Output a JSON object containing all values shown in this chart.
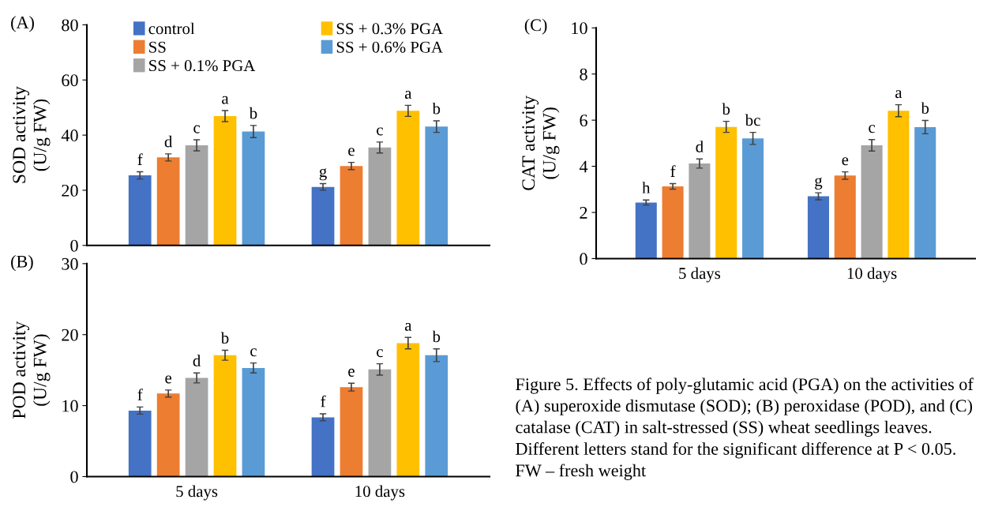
{
  "chart_data": [
    {
      "type": "bar",
      "title": "(A)",
      "ylabel": "SOD activity\n(U/g FW)",
      "categories": [
        null,
        null
      ],
      "ylim": [
        0,
        80
      ],
      "yticks": [
        0,
        20,
        40,
        60,
        80
      ],
      "grid": false,
      "legend": "top",
      "tick_labels": "y",
      "series": [
        {
          "name": "control",
          "color": "#4472c4",
          "values": [
            25.4,
            21.2
          ],
          "errors": [
            1.3,
            1.2
          ],
          "value_labels": [
            "f",
            "g"
          ]
        },
        {
          "name": "SS",
          "color": "#ed7d31",
          "values": [
            31.9,
            28.8
          ],
          "errors": [
            1.3,
            1.3
          ],
          "value_labels": [
            "d",
            "e"
          ]
        },
        {
          "name": "SS + 0.1% PGA",
          "color": "#a5a5a5",
          "values": [
            36.3,
            35.5
          ],
          "errors": [
            2.0,
            2.0
          ],
          "value_labels": [
            "c",
            "c"
          ]
        },
        {
          "name": "SS + 0.3% PGA",
          "color": "#ffc000",
          "values": [
            46.9,
            48.8
          ],
          "errors": [
            2.0,
            2.0
          ],
          "value_labels": [
            "a",
            "a"
          ]
        },
        {
          "name": "SS + 0.6% PGA",
          "color": "#5b9bd5",
          "values": [
            41.3,
            43.1
          ],
          "errors": [
            2.2,
            2.1
          ],
          "value_labels": [
            "b",
            "b"
          ]
        }
      ]
    },
    {
      "type": "bar",
      "title": "(B)",
      "ylabel": "POD activity\n(U/g FW)",
      "categories": [
        "5 days",
        "10 days"
      ],
      "ylim": [
        0,
        30
      ],
      "yticks": [
        0,
        10,
        20,
        30
      ],
      "grid": false,
      "legend": false,
      "series": [
        {
          "color": "#4472c4",
          "values": [
            9.3,
            8.35
          ],
          "errors": [
            0.5,
            0.5
          ],
          "value_labels": [
            "f",
            "f"
          ]
        },
        {
          "color": "#ed7d31",
          "values": [
            11.7,
            12.6
          ],
          "errors": [
            0.5,
            0.55
          ],
          "value_labels": [
            "e",
            "e"
          ]
        },
        {
          "color": "#a5a5a5",
          "values": [
            13.9,
            15.1
          ],
          "errors": [
            0.7,
            0.8
          ],
          "value_labels": [
            "d",
            "c"
          ]
        },
        {
          "color": "#ffc000",
          "values": [
            17.1,
            18.8
          ],
          "errors": [
            0.7,
            0.8
          ],
          "value_labels": [
            "b",
            "a"
          ]
        },
        {
          "color": "#5b9bd5",
          "values": [
            15.3,
            17.1
          ],
          "errors": [
            0.7,
            0.9
          ],
          "value_labels": [
            "c",
            "b"
          ]
        }
      ]
    },
    {
      "type": "bar",
      "title": "(C)",
      "ylabel": "CAT activity\n(U/g FW)",
      "categories": [
        "5 days",
        "10 days"
      ],
      "ylim": [
        0,
        10
      ],
      "yticks": [
        0,
        2,
        4,
        6,
        8,
        10
      ],
      "grid": false,
      "legend": false,
      "annotations": [
        "Figure 5. Effects of poly-glutamic acid (PGA) on the activities of (A) superoxide dismutase (SOD); (B) peroxidase (POD), and (C) catalase (CAT) in salt-stressed (SS) wheat seedlings leaves. Different letters stand for the significant difference at P < 0.05. FW – fresh weight"
      ],
      "series": [
        {
          "color": "#4472c4",
          "values": [
            2.43,
            2.7
          ],
          "errors": [
            0.11,
            0.15
          ],
          "value_labels": [
            "h",
            "g"
          ]
        },
        {
          "color": "#ed7d31",
          "values": [
            3.13,
            3.6
          ],
          "errors": [
            0.12,
            0.16
          ],
          "value_labels": [
            "f",
            "e"
          ]
        },
        {
          "color": "#a5a5a5",
          "values": [
            4.12,
            4.91
          ],
          "errors": [
            0.2,
            0.25
          ],
          "value_labels": [
            "d",
            "c"
          ]
        },
        {
          "color": "#ffc000",
          "values": [
            5.71,
            6.41
          ],
          "errors": [
            0.24,
            0.26
          ],
          "value_labels": [
            "b",
            "a"
          ]
        },
        {
          "color": "#5b9bd5",
          "values": [
            5.21,
            5.7
          ],
          "errors": [
            0.26,
            0.29
          ],
          "value_labels": [
            "bc",
            "b"
          ]
        }
      ]
    }
  ]
}
